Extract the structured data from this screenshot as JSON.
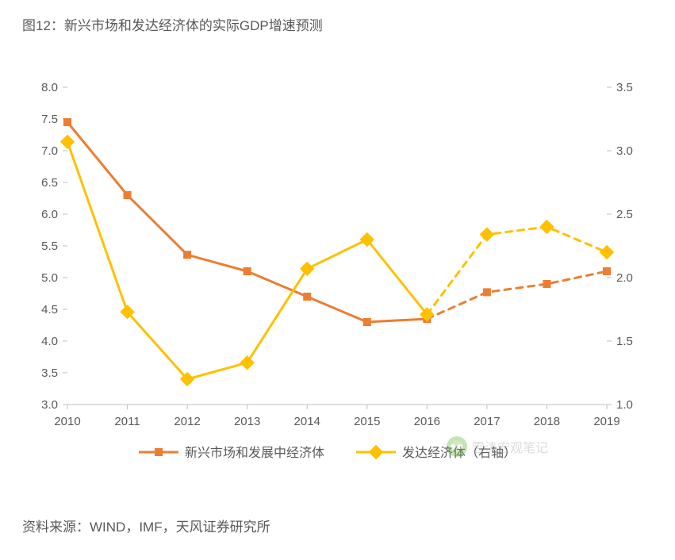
{
  "title": "图12：新兴市场和发达经济体的实际GDP增速预测",
  "source": "资料来源：WIND，IMF，天风证券研究所",
  "watermark": "雪涛宏观笔记",
  "chart": {
    "type": "line",
    "background_color": "#ffffff",
    "x_categories": [
      "2010",
      "2011",
      "2012",
      "2013",
      "2014",
      "2015",
      "2016",
      "2017",
      "2018",
      "2019"
    ],
    "y_left": {
      "min": 3.0,
      "max": 8.0,
      "step": 0.5,
      "labels": [
        "3.0",
        "3.5",
        "4.0",
        "4.5",
        "5.0",
        "5.5",
        "6.0",
        "6.5",
        "7.0",
        "7.5",
        "8.0"
      ]
    },
    "y_right": {
      "min": 1.0,
      "max": 3.5,
      "step": 0.5,
      "labels": [
        "1.0",
        "1.5",
        "2.0",
        "2.5",
        "3.0",
        "3.5"
      ]
    },
    "axis_color": "#bfbfbf",
    "tick_color": "#bfbfbf",
    "label_color": "#595959",
    "axis_fontsize": 15,
    "legend_fontsize": 16,
    "series": [
      {
        "name": "新兴市场和发展中经济体",
        "axis": "left",
        "color": "#ed7d31",
        "marker": "square",
        "marker_size": 10,
        "line_width": 3,
        "data": [
          7.45,
          6.3,
          5.36,
          5.1,
          4.7,
          4.3,
          4.35,
          4.77,
          4.9,
          5.1
        ],
        "dash_from_index": 7
      },
      {
        "name": "发达经济体（右轴）",
        "axis": "right",
        "color": "#ffc000",
        "marker": "diamond",
        "marker_size": 12,
        "line_width": 3,
        "data": [
          3.07,
          1.73,
          1.2,
          1.33,
          2.07,
          2.3,
          1.71,
          2.34,
          2.4,
          2.2
        ],
        "dash_from_index": 7
      }
    ],
    "legend": {
      "items": [
        "新兴市场和发展中经济体",
        "发达经济体（右轴）"
      ]
    }
  }
}
